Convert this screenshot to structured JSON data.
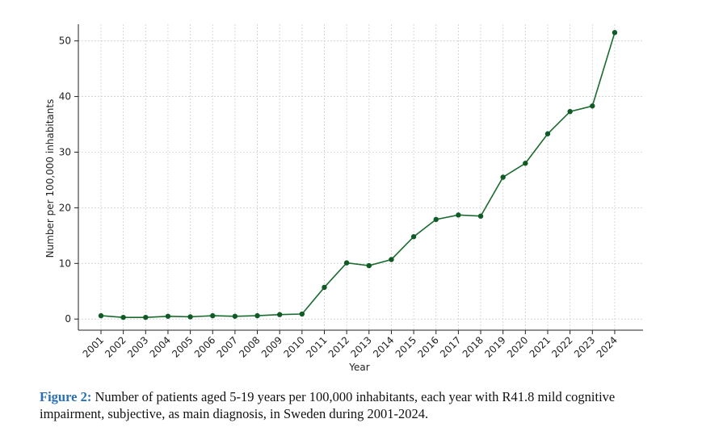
{
  "chart_data": {
    "type": "line",
    "title": "",
    "xlabel": "Year",
    "ylabel": "Number per 100,000 inhabitants",
    "ylim": [
      -2,
      53
    ],
    "yticks": [
      0,
      10,
      20,
      30,
      40,
      50
    ],
    "grid": true,
    "categories": [
      "2001",
      "2002",
      "2003",
      "2004",
      "2005",
      "2006",
      "2007",
      "2008",
      "2009",
      "2010",
      "2011",
      "2012",
      "2013",
      "2014",
      "2015",
      "2016",
      "2017",
      "2018",
      "2019",
      "2020",
      "2021",
      "2022",
      "2023",
      "2024"
    ],
    "series": [
      {
        "name": "R41.8",
        "color": "#1b6b2f",
        "values": [
          0.6,
          0.3,
          0.3,
          0.5,
          0.4,
          0.6,
          0.5,
          0.6,
          0.8,
          0.9,
          5.7,
          10.1,
          9.6,
          10.7,
          14.8,
          17.9,
          18.7,
          18.5,
          25.5,
          28.0,
          33.3,
          37.3,
          38.3,
          51.5
        ]
      }
    ]
  },
  "caption": {
    "label": "Figure 2:",
    "text": " Number of patients aged 5-19 years per 100,000 inhabitants, each year with R41.8 mild cognitive impairment, subjective, as main diagnosis, in Sweden during 2001-2024."
  }
}
